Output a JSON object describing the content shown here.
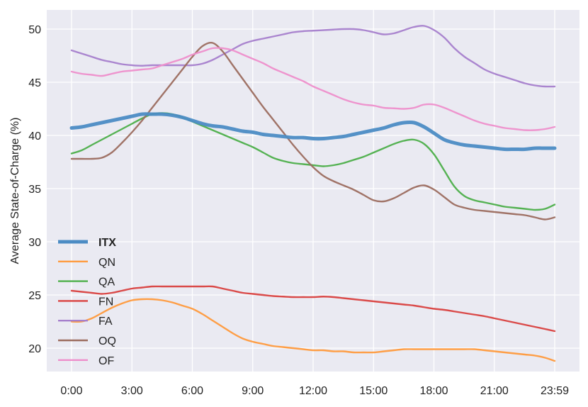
{
  "chart_data": {
    "type": "line",
    "title": "",
    "xlabel": "",
    "ylabel": "Average State-of-Charge (%)",
    "ylim": [
      17.8,
      51.8
    ],
    "y_ticks": [
      20,
      25,
      30,
      35,
      40,
      45,
      50
    ],
    "x_tick_labels": [
      "0:00",
      "3:00",
      "6:00",
      "9:00",
      "12:00",
      "15:00",
      "18:00",
      "21:00",
      "23:59"
    ],
    "x_hours": [
      0,
      0.5,
      1,
      1.5,
      2,
      2.5,
      3,
      3.5,
      4,
      4.5,
      5,
      5.5,
      6,
      6.5,
      7,
      7.5,
      8,
      8.5,
      9,
      9.5,
      10,
      10.5,
      11,
      11.5,
      12,
      12.5,
      13,
      13.5,
      14,
      14.5,
      15,
      15.5,
      16,
      16.5,
      17,
      17.5,
      18,
      18.5,
      19,
      19.5,
      20,
      20.5,
      21,
      21.5,
      22,
      22.5,
      23,
      23.5,
      23.98
    ],
    "grid": true,
    "background": "#eaeaf2",
    "legend_position": "lower-left",
    "series": [
      {
        "name": "ITX",
        "color": "#4c8cc4",
        "bold": true,
        "values": [
          40.7,
          40.8,
          41.0,
          41.2,
          41.4,
          41.6,
          41.8,
          42.0,
          42.0,
          42.0,
          41.9,
          41.7,
          41.4,
          41.1,
          40.9,
          40.8,
          40.6,
          40.4,
          40.3,
          40.1,
          40.0,
          39.9,
          39.8,
          39.8,
          39.7,
          39.7,
          39.8,
          39.9,
          40.1,
          40.3,
          40.5,
          40.7,
          41.0,
          41.2,
          41.2,
          40.8,
          40.2,
          39.6,
          39.3,
          39.1,
          39.0,
          38.9,
          38.8,
          38.7,
          38.7,
          38.7,
          38.8,
          38.8,
          38.8
        ]
      },
      {
        "name": "QN",
        "color": "#ff9a3c",
        "bold": false,
        "values": [
          22.5,
          22.5,
          22.8,
          23.3,
          23.8,
          24.2,
          24.5,
          24.6,
          24.6,
          24.5,
          24.3,
          24.0,
          23.7,
          23.2,
          22.6,
          22.0,
          21.4,
          20.9,
          20.6,
          20.4,
          20.2,
          20.1,
          20.0,
          19.9,
          19.8,
          19.8,
          19.7,
          19.7,
          19.6,
          19.6,
          19.6,
          19.7,
          19.8,
          19.9,
          19.9,
          19.9,
          19.9,
          19.9,
          19.9,
          19.9,
          19.9,
          19.8,
          19.7,
          19.6,
          19.5,
          19.4,
          19.3,
          19.1,
          18.8
        ]
      },
      {
        "name": "QA",
        "color": "#4daf4a",
        "bold": false,
        "values": [
          38.3,
          38.6,
          39.1,
          39.6,
          40.1,
          40.6,
          41.1,
          41.6,
          42.0,
          42.1,
          42.0,
          41.7,
          41.3,
          40.9,
          40.5,
          40.1,
          39.7,
          39.3,
          38.9,
          38.4,
          37.9,
          37.6,
          37.4,
          37.3,
          37.2,
          37.1,
          37.2,
          37.4,
          37.7,
          38.0,
          38.4,
          38.8,
          39.2,
          39.5,
          39.6,
          39.2,
          38.2,
          36.7,
          35.2,
          34.3,
          33.9,
          33.7,
          33.5,
          33.3,
          33.2,
          33.1,
          33.0,
          33.1,
          33.5
        ]
      },
      {
        "name": "FN",
        "color": "#d9413f",
        "bold": false,
        "values": [
          25.4,
          25.3,
          25.2,
          25.1,
          25.2,
          25.4,
          25.6,
          25.7,
          25.8,
          25.8,
          25.8,
          25.8,
          25.8,
          25.8,
          25.8,
          25.6,
          25.4,
          25.2,
          25.1,
          25.0,
          24.9,
          24.85,
          24.8,
          24.8,
          24.8,
          24.85,
          24.8,
          24.7,
          24.6,
          24.5,
          24.4,
          24.3,
          24.2,
          24.1,
          24.0,
          23.85,
          23.7,
          23.6,
          23.45,
          23.3,
          23.15,
          23.0,
          22.8,
          22.6,
          22.4,
          22.2,
          22.0,
          21.8,
          21.6
        ]
      },
      {
        "name": "FA",
        "color": "#a67fcc",
        "bold": false,
        "values": [
          48.0,
          47.7,
          47.4,
          47.1,
          46.9,
          46.7,
          46.6,
          46.55,
          46.6,
          46.6,
          46.6,
          46.6,
          46.6,
          46.75,
          47.1,
          47.6,
          48.1,
          48.6,
          48.9,
          49.1,
          49.3,
          49.5,
          49.7,
          49.8,
          49.85,
          49.9,
          49.95,
          50.0,
          50.0,
          49.9,
          49.7,
          49.5,
          49.6,
          49.9,
          50.2,
          50.3,
          49.9,
          49.2,
          48.2,
          47.4,
          46.8,
          46.2,
          45.8,
          45.5,
          45.2,
          44.9,
          44.7,
          44.6,
          44.6
        ]
      },
      {
        "name": "OQ",
        "color": "#9c6d5f",
        "bold": false,
        "values": [
          37.8,
          37.8,
          37.8,
          37.9,
          38.4,
          39.3,
          40.3,
          41.4,
          42.6,
          43.8,
          45.0,
          46.2,
          47.4,
          48.4,
          48.7,
          47.9,
          46.6,
          45.3,
          44.0,
          42.7,
          41.5,
          40.3,
          39.1,
          38.0,
          37.0,
          36.2,
          35.7,
          35.3,
          34.9,
          34.4,
          33.9,
          33.8,
          34.1,
          34.6,
          35.1,
          35.3,
          34.9,
          34.2,
          33.5,
          33.2,
          33.0,
          32.9,
          32.8,
          32.7,
          32.6,
          32.5,
          32.3,
          32.1,
          32.3
        ]
      },
      {
        "name": "OF",
        "color": "#ee8fcb",
        "bold": false,
        "values": [
          46.0,
          45.8,
          45.7,
          45.6,
          45.8,
          46.0,
          46.1,
          46.2,
          46.3,
          46.6,
          46.9,
          47.2,
          47.6,
          47.9,
          48.2,
          48.2,
          48.0,
          47.6,
          47.2,
          46.8,
          46.3,
          45.9,
          45.5,
          45.1,
          44.6,
          44.2,
          43.8,
          43.4,
          43.1,
          42.9,
          42.8,
          42.6,
          42.55,
          42.5,
          42.6,
          42.9,
          42.9,
          42.6,
          42.2,
          41.8,
          41.4,
          41.1,
          40.9,
          40.7,
          40.6,
          40.5,
          40.5,
          40.6,
          40.8
        ]
      }
    ]
  }
}
